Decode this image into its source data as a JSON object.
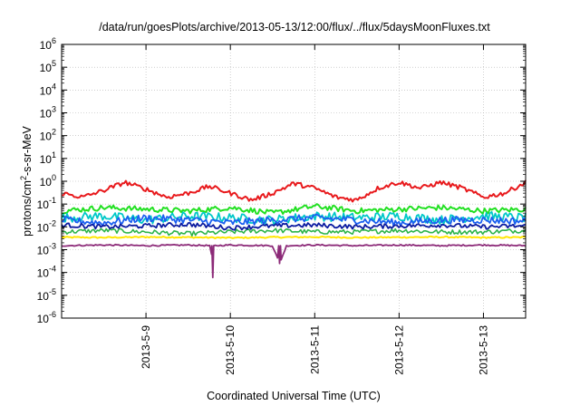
{
  "chart_data": {
    "type": "line",
    "title": "/data/run/goesPlots/archive/2013-05-13/12:00/flux/../flux/5daysMoonFluxes.txt",
    "xlabel": "Coordinated Universal Time (UTC)",
    "ylabel_parts": [
      "protons/cm",
      "2",
      "-s-sr-MeV"
    ],
    "yscale": "log",
    "ylim": [
      1e-06,
      1000000.0
    ],
    "xlim": [
      "2013-05-08 00:00",
      "2013-05-13 12:00"
    ],
    "x_ticks": [
      "2013-5-9",
      "2013-5-10",
      "2013-5-11",
      "2013-5-12",
      "2013-5-13"
    ],
    "y_tick_exponents": [
      "-6",
      "-5",
      "-4",
      "-3",
      "-2",
      "-1",
      "0",
      "1",
      "2",
      "3",
      "4",
      "5",
      "6"
    ],
    "y_tick_base": "10",
    "grid": true,
    "legend": "none",
    "series": [
      {
        "color": "#e8191c",
        "x": [
          "2013-05-08 00:00",
          "2013-05-08 06:00",
          "2013-05-08 12:00",
          "2013-05-08 18:00",
          "2013-05-09 00:00",
          "2013-05-09 06:00",
          "2013-05-09 12:00",
          "2013-05-09 18:00",
          "2013-05-10 00:00",
          "2013-05-10 06:00",
          "2013-05-10 12:00",
          "2013-05-10 18:00",
          "2013-05-11 00:00",
          "2013-05-11 06:00",
          "2013-05-11 12:00",
          "2013-05-11 18:00",
          "2013-05-12 00:00",
          "2013-05-12 06:00",
          "2013-05-12 12:00",
          "2013-05-12 18:00",
          "2013-05-13 00:00",
          "2013-05-13 06:00",
          "2013-05-13 12:00"
        ],
        "y": [
          0.3,
          0.2,
          0.4,
          0.9,
          0.45,
          0.2,
          0.3,
          0.6,
          0.3,
          0.15,
          0.3,
          0.8,
          0.5,
          0.2,
          0.15,
          0.5,
          0.9,
          0.5,
          0.9,
          0.5,
          0.2,
          0.3,
          0.9
        ]
      },
      {
        "color": "#22e022",
        "x": [
          "2013-05-08 00:00",
          "2013-05-08 12:00",
          "2013-05-09 00:00",
          "2013-05-09 12:00",
          "2013-05-10 00:00",
          "2013-05-10 12:00",
          "2013-05-11 00:00",
          "2013-05-11 12:00",
          "2013-05-12 00:00",
          "2013-05-12 12:00",
          "2013-05-13 00:00",
          "2013-05-13 12:00"
        ],
        "y": [
          0.05,
          0.07,
          0.06,
          0.05,
          0.07,
          0.04,
          0.08,
          0.05,
          0.06,
          0.07,
          0.05,
          0.06
        ]
      },
      {
        "color": "#00c8c8",
        "x": [
          "2013-05-08 00:00",
          "2013-05-08 12:00",
          "2013-05-09 00:00",
          "2013-05-09 12:00",
          "2013-05-10 00:00",
          "2013-05-10 12:00",
          "2013-05-11 00:00",
          "2013-05-11 12:00",
          "2013-05-12 00:00",
          "2013-05-12 12:00",
          "2013-05-13 00:00",
          "2013-05-13 12:00"
        ],
        "y": [
          0.025,
          0.03,
          0.02,
          0.03,
          0.025,
          0.02,
          0.03,
          0.025,
          0.03,
          0.02,
          0.03,
          0.025
        ]
      },
      {
        "color": "#1a5ff0",
        "x": [
          "2013-05-08 00:00",
          "2013-05-08 12:00",
          "2013-05-09 00:00",
          "2013-05-09 12:00",
          "2013-05-10 00:00",
          "2013-05-10 12:00",
          "2013-05-11 00:00",
          "2013-05-11 12:00",
          "2013-05-12 00:00",
          "2013-05-12 12:00",
          "2013-05-13 00:00",
          "2013-05-13 12:00"
        ],
        "y": [
          0.02,
          0.015,
          0.025,
          0.02,
          0.015,
          0.02,
          0.025,
          0.02,
          0.015,
          0.02,
          0.02,
          0.018
        ]
      },
      {
        "color": "#0a1aa0",
        "x": [
          "2013-05-08 00:00",
          "2013-05-08 12:00",
          "2013-05-09 00:00",
          "2013-05-09 12:00",
          "2013-05-10 00:00",
          "2013-05-10 12:00",
          "2013-05-11 00:00",
          "2013-05-11 12:00",
          "2013-05-12 00:00",
          "2013-05-12 12:00",
          "2013-05-13 00:00",
          "2013-05-13 12:00"
        ],
        "y": [
          0.012,
          0.01,
          0.011,
          0.013,
          0.009,
          0.011,
          0.012,
          0.01,
          0.011,
          0.012,
          0.01,
          0.011
        ]
      },
      {
        "color": "#2db34a",
        "x": [
          "2013-05-08 00:00",
          "2013-05-08 12:00",
          "2013-05-09 00:00",
          "2013-05-09 12:00",
          "2013-05-10 00:00",
          "2013-05-10 12:00",
          "2013-05-11 00:00",
          "2013-05-11 12:00",
          "2013-05-12 00:00",
          "2013-05-12 12:00",
          "2013-05-13 00:00",
          "2013-05-13 12:00"
        ],
        "y": [
          0.006,
          0.007,
          0.006,
          0.005,
          0.006,
          0.007,
          0.006,
          0.006,
          0.007,
          0.006,
          0.006,
          0.007
        ]
      },
      {
        "color": "#ffe600",
        "x": [
          "2013-05-08 00:00",
          "2013-05-08 12:00",
          "2013-05-09 00:00",
          "2013-05-09 12:00",
          "2013-05-10 00:00",
          "2013-05-10 12:00",
          "2013-05-11 00:00",
          "2013-05-11 12:00",
          "2013-05-12 00:00",
          "2013-05-12 12:00",
          "2013-05-13 00:00",
          "2013-05-13 12:00"
        ],
        "y": [
          0.0035,
          0.0034,
          0.0036,
          0.0035,
          0.0033,
          0.0035,
          0.0036,
          0.0034,
          0.0035,
          0.0036,
          0.0034,
          0.0035
        ]
      },
      {
        "color": "#8c2a78",
        "x": [
          "2013-05-08 00:00",
          "2013-05-08 12:00",
          "2013-05-09 00:00",
          "2013-05-09 12:00",
          "2013-05-09 18:30",
          "2013-05-09 19:00",
          "2013-05-09 19:30",
          "2013-05-10 00:00",
          "2013-05-10 12:00",
          "2013-05-10 14:00",
          "2013-05-10 16:00",
          "2013-05-11 00:00",
          "2013-05-11 12:00",
          "2013-05-12 00:00",
          "2013-05-12 12:00",
          "2013-05-13 00:00",
          "2013-05-13 12:00"
        ],
        "y": [
          0.0015,
          0.0016,
          0.0015,
          0.0016,
          0.0015,
          6e-05,
          0.0015,
          0.0016,
          0.0015,
          0.00025,
          0.0015,
          0.0016,
          0.0015,
          0.0016,
          0.0015,
          0.0016,
          0.0015
        ]
      }
    ]
  }
}
